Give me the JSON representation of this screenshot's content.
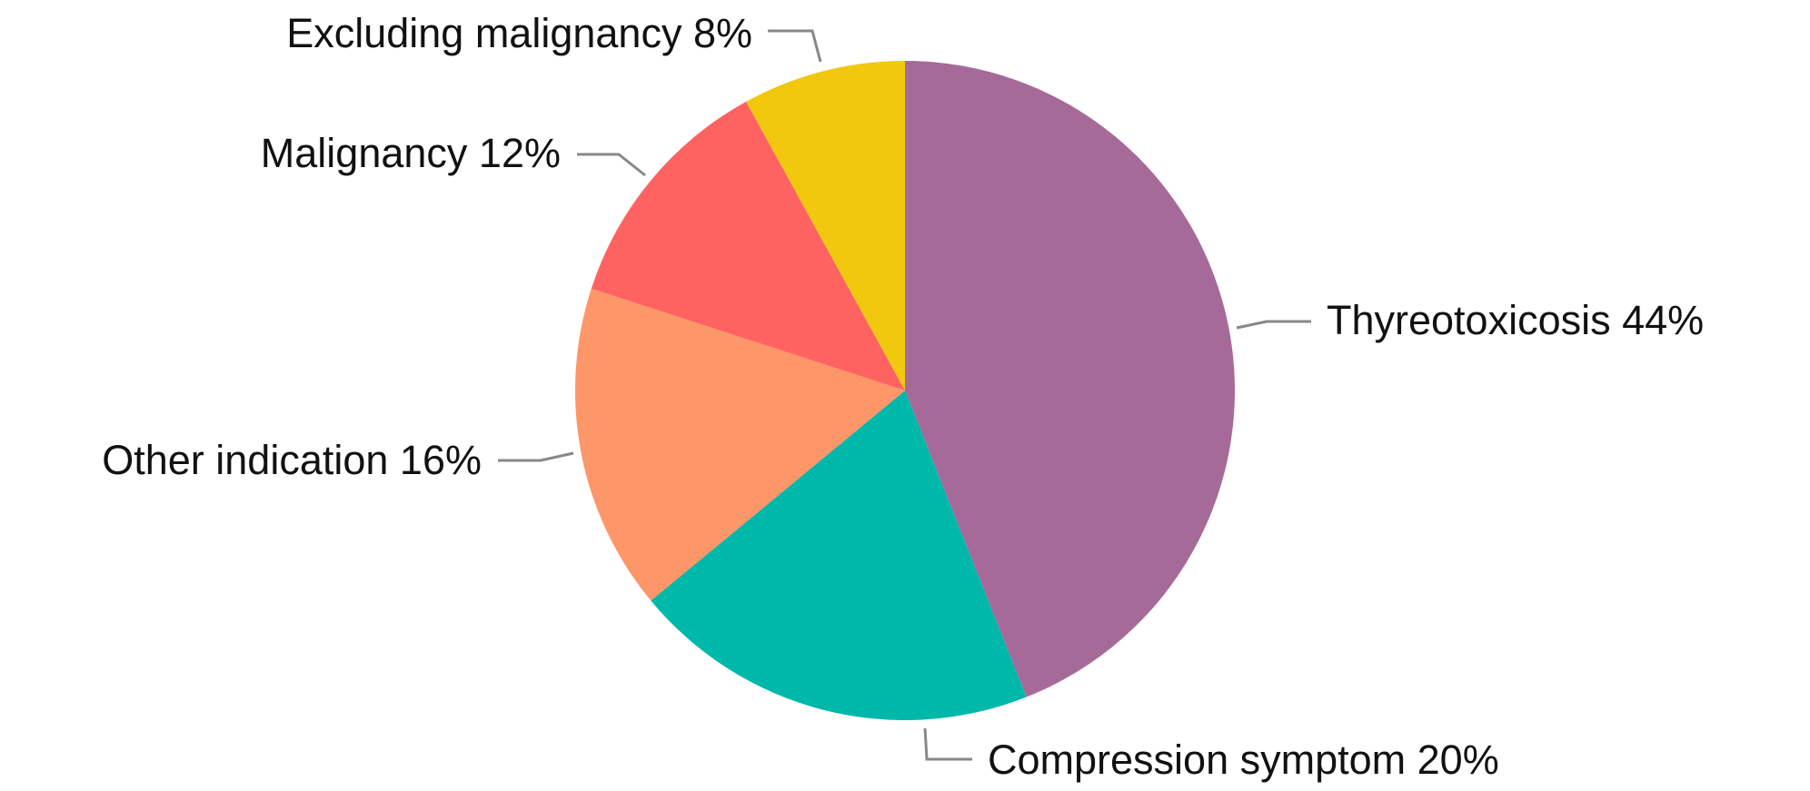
{
  "chart_data": {
    "type": "pie",
    "categories": [
      "Thyreotoxicosis",
      "Compression symptom",
      "Other indication",
      "Malignancy",
      "Excluding malignancy"
    ],
    "values": [
      44,
      20,
      16,
      12,
      8
    ],
    "value_labels": [
      "44%",
      "20%",
      "16%",
      "12%",
      "8%"
    ],
    "colors": [
      "#a66a98",
      "#00b8aa",
      "#fd9668",
      "#fe6361",
      "#f2c80f"
    ]
  }
}
